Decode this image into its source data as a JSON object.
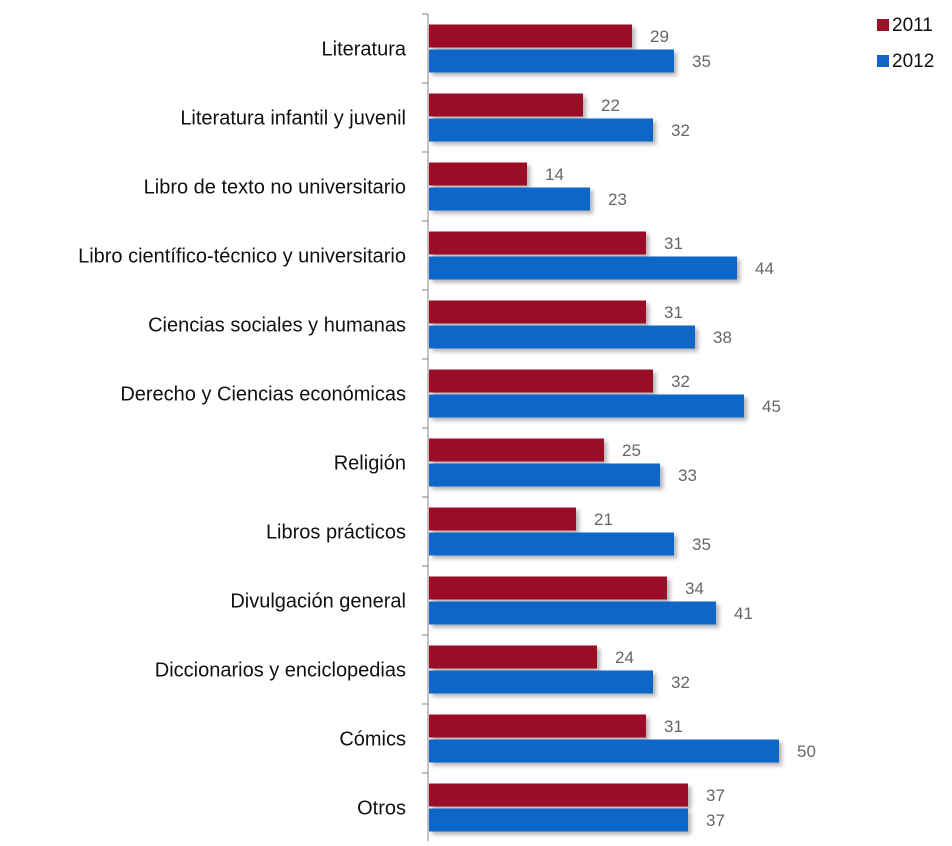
{
  "chart_data": {
    "type": "bar",
    "orientation": "horizontal",
    "categories": [
      "Literatura",
      "Literatura infantil y juvenil",
      "Libro de texto no universitario",
      "Libro científico-técnico y universitario",
      "Ciencias sociales y humanas",
      "Derecho y Ciencias económicas",
      "Religión",
      "Libros prácticos",
      "Divulgación general",
      "Diccionarios y enciclopedias",
      "Cómics",
      "Otros"
    ],
    "series": [
      {
        "name": "2011",
        "color": "#9B1127",
        "values": [
          29,
          22,
          14,
          31,
          31,
          32,
          25,
          21,
          34,
          24,
          31,
          37
        ]
      },
      {
        "name": "2012",
        "color": "#0F66C8",
        "values": [
          35,
          32,
          23,
          44,
          38,
          45,
          33,
          35,
          41,
          32,
          50,
          37
        ]
      }
    ],
    "data_labels": true,
    "legend_position": "top-right",
    "grid": false,
    "xlim": [
      0,
      58
    ]
  }
}
